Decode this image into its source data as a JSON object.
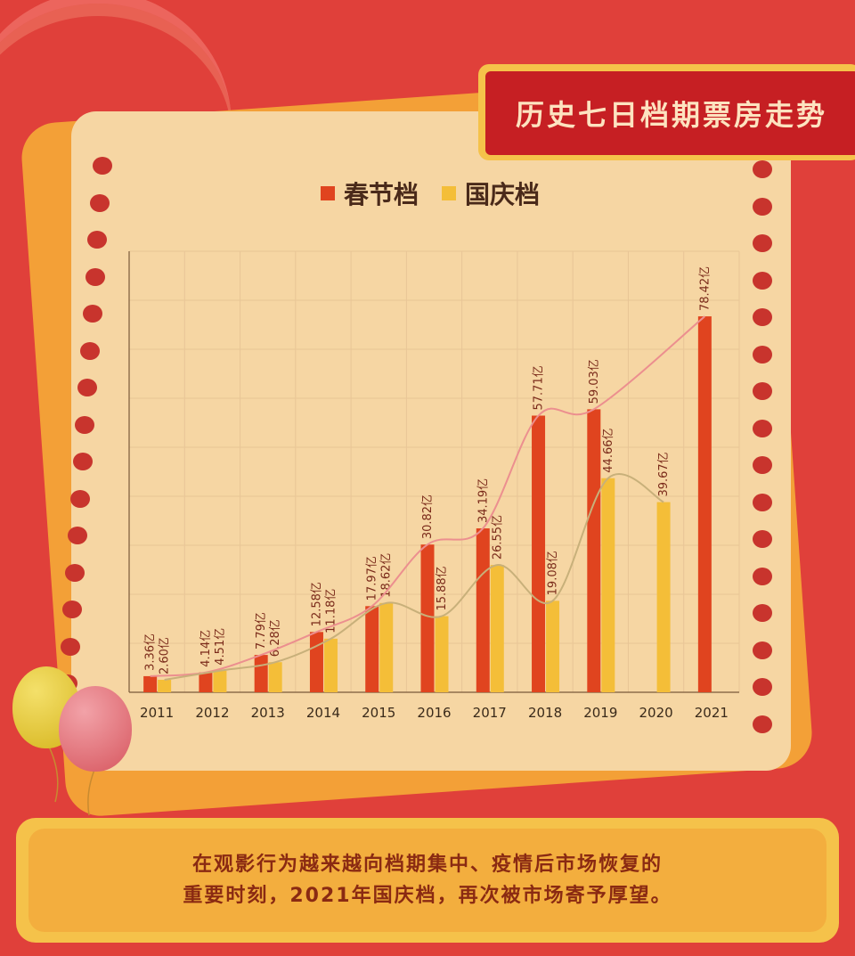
{
  "header": {
    "title": "历史七日档期票房走势"
  },
  "legend": {
    "spring": "春节档",
    "national": "国庆档"
  },
  "caption": {
    "line1": "在观影行为越来越向档期集中、疫情后市场恢复的",
    "line2": "重要时刻，2021年国庆档，再次被市场寄予厚望。"
  },
  "colors": {
    "spring": "#e0441f",
    "national": "#f4be38",
    "springLine": "#ec8f8f",
    "nationalLine": "#c8b07a"
  },
  "chart_data": {
    "type": "bar",
    "categories": [
      "2011",
      "2012",
      "2013",
      "2014",
      "2015",
      "2016",
      "2017",
      "2018",
      "2019",
      "2020",
      "2021"
    ],
    "series": [
      {
        "name": "春节档",
        "values": [
          3.36,
          4.14,
          7.79,
          12.58,
          17.97,
          30.82,
          34.19,
          57.71,
          59.03,
          null,
          78.42
        ],
        "labels": [
          "3.36亿",
          "4.14亿",
          "7.79亿",
          "12.58亿",
          "17.97亿",
          "30.82亿",
          "34.19亿",
          "57.71亿",
          "59.03亿",
          "",
          "78.42亿"
        ]
      },
      {
        "name": "国庆档",
        "values": [
          2.6,
          4.51,
          6.28,
          11.18,
          18.62,
          15.88,
          26.55,
          19.08,
          44.66,
          39.67,
          null
        ],
        "labels": [
          "2.60亿",
          "4.51亿",
          "6.28亿",
          "11.18亿",
          "18.62亿",
          "15.88亿",
          "26.55亿",
          "19.08亿",
          "44.66亿",
          "39.67亿",
          ""
        ]
      }
    ],
    "ylim": [
      0,
      92
    ],
    "grid": true,
    "legend_position": "top"
  }
}
